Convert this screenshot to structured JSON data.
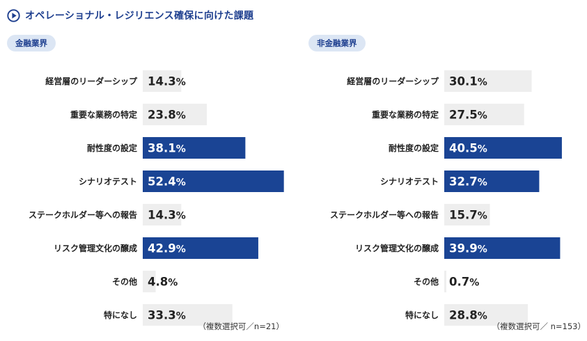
{
  "header": {
    "title": "オペレーショナル・レジリエンス確保に向けた課題",
    "icon": "play-circle-icon"
  },
  "colors": {
    "accent": "#1e3f8f",
    "bar_default": "#eeeeee",
    "bar_highlight": "#1a4494",
    "badge_bg": "#dce6f4"
  },
  "chart_data": [
    {
      "type": "bar",
      "orientation": "horizontal",
      "badge": "金融業界",
      "note": "（複数選択可／n=21）",
      "categories": [
        "経営層のリーダーシップ",
        "重要な業務の特定",
        "耐性度の設定",
        "シナリオテスト",
        "ステークホルダー等への報告",
        "リスク管理文化の醸成",
        "その他",
        "特になし"
      ],
      "values": [
        14.3,
        23.8,
        38.1,
        52.4,
        14.3,
        42.9,
        4.8,
        33.3
      ],
      "value_labels": [
        "14.3%",
        "23.8%",
        "38.1%",
        "52.4%",
        "14.3%",
        "42.9%",
        "4.8%",
        "33.3%"
      ],
      "highlighted": [
        false,
        false,
        true,
        true,
        false,
        true,
        false,
        false
      ],
      "xlim": [
        0,
        53
      ]
    },
    {
      "type": "bar",
      "orientation": "horizontal",
      "badge": "非金融業界",
      "note": "（複数選択可／ n=153）",
      "categories": [
        "経営層のリーダーシップ",
        "重要な業務の特定",
        "耐性度の設定",
        "シナリオテスト",
        "ステークホルダー等への報告",
        "リスク管理文化の醸成",
        "その他",
        "特になし"
      ],
      "values": [
        30.1,
        27.5,
        40.5,
        32.7,
        15.7,
        39.9,
        0.7,
        28.8
      ],
      "value_labels": [
        "30.1%",
        "27.5%",
        "40.5%",
        "32.7%",
        "15.7%",
        "39.9%",
        "0.7%",
        "28.8%"
      ],
      "highlighted": [
        false,
        false,
        true,
        true,
        false,
        true,
        false,
        false
      ],
      "xlim": [
        0,
        41
      ]
    }
  ]
}
